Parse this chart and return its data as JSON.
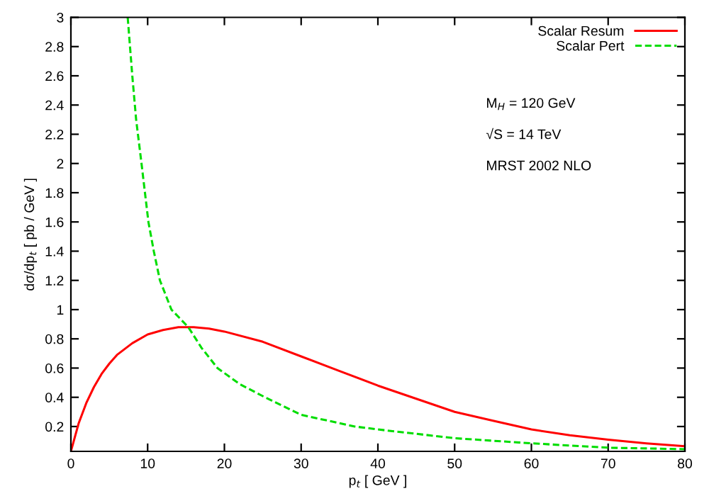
{
  "chart_data": {
    "type": "line",
    "xlabel": "p$_{t}$ [ GeV ]",
    "ylabel": "dσ/dp$_{t}$ [ pb / GeV ]",
    "annotations": [
      "M$_{H}$ = 120 GeV",
      "√S = 14 TeV",
      "MRST 2002 NLO"
    ],
    "series": [
      {
        "name": "Scalar Resum",
        "color": "#ff0000",
        "line_style": "solid",
        "x": [
          0,
          1,
          2,
          3,
          4,
          5,
          6,
          8,
          10,
          12,
          14,
          16,
          18,
          20,
          25,
          30,
          35,
          40,
          45,
          50,
          55,
          60,
          65,
          70,
          75,
          80
        ],
        "values": [
          0.03,
          0.22,
          0.36,
          0.47,
          0.56,
          0.63,
          0.69,
          0.77,
          0.83,
          0.86,
          0.88,
          0.88,
          0.87,
          0.85,
          0.78,
          0.68,
          0.58,
          0.48,
          0.39,
          0.3,
          0.24,
          0.18,
          0.14,
          0.11,
          0.085,
          0.065
        ]
      },
      {
        "name": "Scalar Pert",
        "color": "#00dd00",
        "line_style": "dashed",
        "x": [
          7.4,
          8,
          8.5,
          9.2,
          10.1,
          10.8,
          11.6,
          13.1,
          15.3,
          17,
          19.1,
          22,
          25.3,
          30,
          37,
          40,
          45,
          50,
          60,
          70,
          80
        ],
        "values": [
          3.0,
          2.6,
          2.3,
          2.0,
          1.6,
          1.4,
          1.2,
          1.0,
          0.88,
          0.74,
          0.6,
          0.49,
          0.4,
          0.28,
          0.2,
          0.18,
          0.15,
          0.12,
          0.085,
          0.055,
          0.045
        ]
      }
    ],
    "xlim": [
      0,
      80
    ],
    "ylim": [
      0.03,
      3
    ],
    "xticks": [
      0,
      10,
      20,
      30,
      40,
      50,
      60,
      70,
      80
    ],
    "yticks": [
      0.2,
      0.4,
      0.6,
      0.8,
      1,
      1.2,
      1.4,
      1.6,
      1.8,
      2,
      2.2,
      2.4,
      2.6,
      2.8,
      3
    ],
    "grid": false,
    "legend": "top right",
    "marker": "none"
  }
}
